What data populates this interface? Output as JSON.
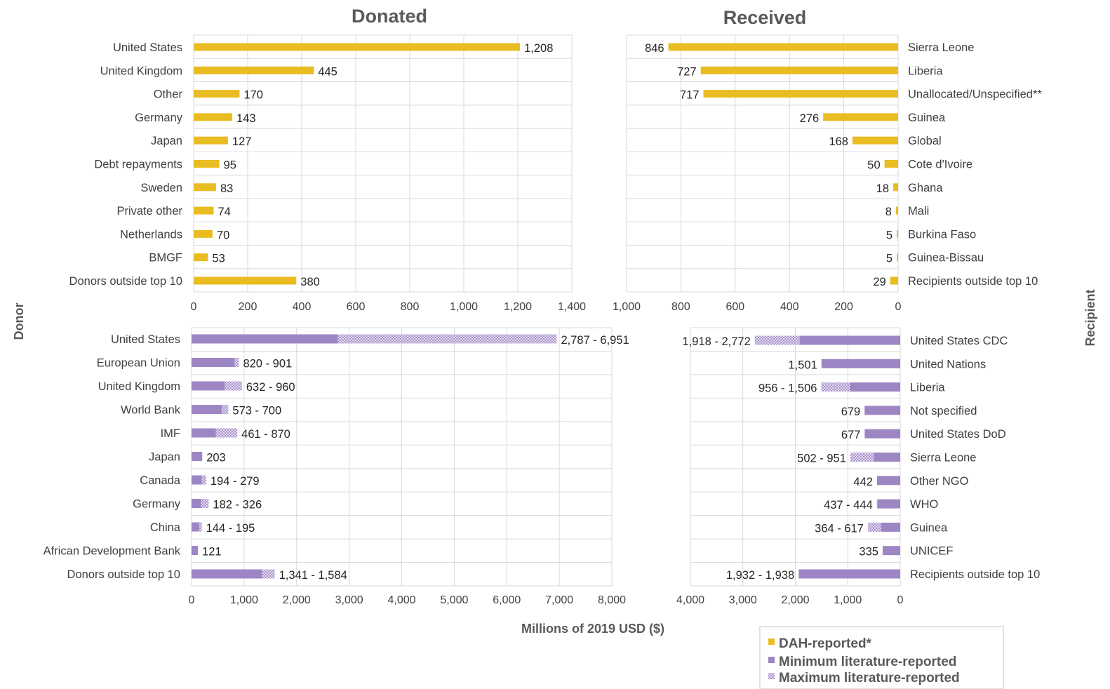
{
  "colors": {
    "dah": "#E9BC22",
    "min_lit": "#9E86C4",
    "max_lit": "#C8B8E0",
    "grid": "#D9D9D9"
  },
  "labels": {
    "donor_axis": "Donor",
    "recipient_axis": "Recipient",
    "x_axis": "Millions of 2019 USD ($)"
  },
  "legend": [
    {
      "label": "DAH-reported*",
      "style": "solid",
      "color": "#E9BC22"
    },
    {
      "label": "Minimum literature-reported",
      "style": "solid",
      "color": "#9E86C4"
    },
    {
      "label": "Maximum literature-reported",
      "style": "pattern",
      "color": "#C8B8E0"
    }
  ],
  "chart_data": [
    {
      "type": "bar",
      "title": "Donated",
      "orientation": "horizontal",
      "categories": [
        "United States",
        "United Kingdom",
        "Other",
        "Germany",
        "Japan",
        "Debt repayments",
        "Sweden",
        "Private other",
        "Netherlands",
        "BMGF",
        "Donors outside top 10"
      ],
      "values": [
        1208,
        445,
        170,
        143,
        127,
        95,
        83,
        74,
        70,
        53,
        380
      ],
      "data_labels": [
        "1,208",
        "445",
        "170",
        "143",
        "127",
        "95",
        "83",
        "74",
        "70",
        "53",
        "380"
      ],
      "xlim": [
        0,
        1400
      ],
      "ticks": [
        "0",
        "200",
        "400",
        "600",
        "800",
        "1,000",
        "1,200",
        "1,400"
      ]
    },
    {
      "type": "bar",
      "title": "Received",
      "orientation": "horizontal",
      "reversed": true,
      "categories": [
        "Sierra Leone",
        "Liberia",
        "Unallocated/Unspecified**",
        "Guinea",
        "Global",
        "Cote d'Ivoire",
        "Ghana",
        "Mali",
        "Burkina Faso",
        "Guinea-Bissau",
        "Recipients outside top 10"
      ],
      "values": [
        846,
        727,
        717,
        276,
        168,
        50,
        18,
        8,
        5,
        5,
        29
      ],
      "data_labels": [
        "846",
        "727",
        "717",
        "276",
        "168",
        "50",
        "18",
        "8",
        "5",
        "5",
        "29"
      ],
      "xlim": [
        1000,
        0
      ],
      "ticks": [
        "1,000",
        "800",
        "600",
        "400",
        "200",
        "0"
      ]
    },
    {
      "type": "bar",
      "title": "",
      "orientation": "horizontal",
      "categories": [
        "United States",
        "European Union",
        "United Kingdom",
        "World Bank",
        "IMF",
        "Japan",
        "Canada",
        "Germany",
        "China",
        "African Development Bank",
        "Donors outside top 10"
      ],
      "series": [
        {
          "name": "Minimum literature-reported",
          "values": [
            2787,
            820,
            632,
            573,
            461,
            203,
            194,
            182,
            144,
            121,
            1341
          ]
        },
        {
          "name": "Maximum literature-reported",
          "values": [
            6951,
            901,
            960,
            700,
            870,
            203,
            279,
            326,
            195,
            121,
            1584
          ]
        }
      ],
      "data_labels": [
        "2,787 - 6,951",
        "820 - 901",
        "632 - 960",
        "573 - 700",
        "461 - 870",
        "203",
        "194 - 279",
        "182 - 326",
        "144 - 195",
        "121",
        "1,341 - 1,584"
      ],
      "xlim": [
        0,
        8000
      ],
      "ticks": [
        "0",
        "1,000",
        "2,000",
        "3,000",
        "4,000",
        "5,000",
        "6,000",
        "7,000",
        "8,000"
      ]
    },
    {
      "type": "bar",
      "title": "",
      "orientation": "horizontal",
      "reversed": true,
      "categories": [
        "United States CDC",
        "United Nations",
        "Liberia",
        "Not specified",
        "United States DoD",
        "Sierra Leone",
        "Other NGO",
        "WHO",
        "Guinea",
        "UNICEF",
        "Recipients outside top 10"
      ],
      "series": [
        {
          "name": "Minimum literature-reported",
          "values": [
            1918,
            1501,
            956,
            679,
            677,
            502,
            442,
            437,
            364,
            335,
            1932
          ]
        },
        {
          "name": "Maximum literature-reported",
          "values": [
            2772,
            1501,
            1506,
            679,
            677,
            951,
            442,
            444,
            617,
            335,
            1938
          ]
        }
      ],
      "data_labels": [
        "1,918 - 2,772",
        "1,501",
        "956 - 1,506",
        "679",
        "677",
        "502 - 951",
        "442",
        "437 - 444",
        "364 - 617",
        "335",
        "1,932 - 1,938"
      ],
      "xlim": [
        4000,
        0
      ],
      "ticks": [
        "4,000",
        "3,000",
        "2,000",
        "1,000",
        "0"
      ]
    }
  ]
}
